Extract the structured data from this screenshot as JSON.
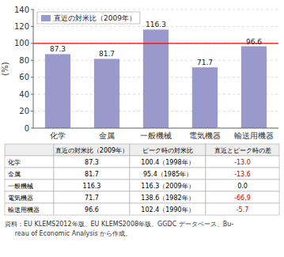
{
  "chart_data": {
    "type": "bar",
    "ylabel": "(%)",
    "categories": [
      "化学",
      "金属",
      "一般機械",
      "電気機器",
      "輸送用機器"
    ],
    "series": [
      {
        "name": "直近の対米比（2009年）",
        "color": "#9999cc",
        "values": [
          87.3,
          81.7,
          116.3,
          71.7,
          96.6
        ]
      }
    ],
    "ylim": [
      0,
      140
    ],
    "yticks": [
      0,
      20,
      40,
      60,
      80,
      100,
      120,
      140
    ],
    "grid": true,
    "legend": "upper left",
    "data_labels": true,
    "reference_line": {
      "value": 100,
      "color": "#ff0000"
    },
    "table": {
      "header": [
        "直近の対米比（2009年）",
        "ピーク時の対米比",
        "直近とピーク時の差"
      ],
      "rows": [
        [
          "化学",
          "87.3",
          "100.4（1998年）",
          "-13.0"
        ],
        [
          "金属",
          "81.7",
          "95.4（1985年）",
          "-13.6"
        ],
        [
          "一般機械",
          "116.3",
          "116.3（2009年）",
          "0.0"
        ],
        [
          "電気機器",
          "71.7",
          "138.6（1982年）",
          "-66.9"
        ],
        [
          "輸送用機器",
          "96.6",
          "102.4（1990年）",
          "-5.7"
        ]
      ],
      "color": "#cc0000"
    },
    "source": [
      "資料：EU KLEMS2012年版、EU KLEMS2008年版、GGDC データベース、Bu-",
      "     reau of Economic Analysis から作成。"
    ]
  }
}
